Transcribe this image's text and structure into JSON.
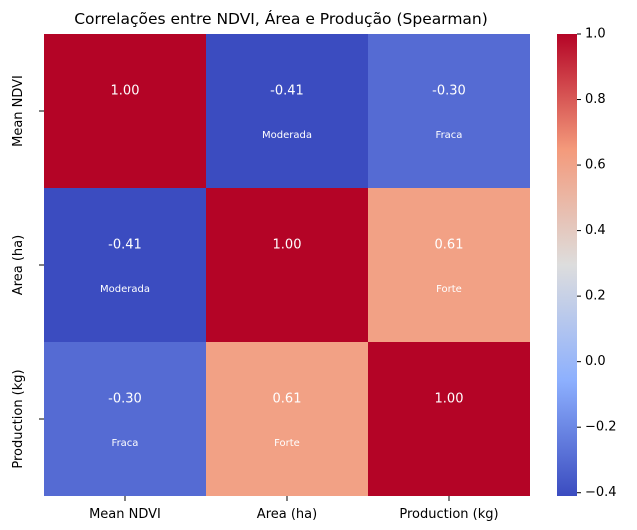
{
  "chart_data": {
    "type": "heatmap",
    "title": "Correlações entre NDVI, Área e Produção (Spearman)",
    "xlabel": "",
    "ylabel": "",
    "x_categories": [
      "Mean NDVI",
      "Area (ha)",
      "Production (kg)"
    ],
    "y_categories": [
      "Mean NDVI",
      "Area (ha)",
      "Production (kg)"
    ],
    "values": [
      [
        1.0,
        -0.41,
        -0.3
      ],
      [
        -0.41,
        1.0,
        0.61
      ],
      [
        -0.3,
        0.61,
        1.0
      ]
    ],
    "value_labels": [
      [
        "1.00",
        "-0.41",
        "-0.30"
      ],
      [
        "-0.41",
        "1.00",
        "0.61"
      ],
      [
        "-0.30",
        "0.61",
        "1.00"
      ]
    ],
    "strength_labels": [
      [
        "",
        "Moderada",
        "Fraca"
      ],
      [
        "Moderada",
        "",
        "Forte"
      ],
      [
        "Fraca",
        "Forte",
        ""
      ]
    ],
    "colormap": "coolwarm",
    "colorbar": {
      "range": [
        -0.41,
        1.0
      ],
      "ticks": [
        -0.4,
        -0.2,
        0.0,
        0.2,
        0.4,
        0.6,
        0.8,
        1.0
      ],
      "tick_labels": [
        "−0.4",
        "−0.2",
        "0.0",
        "0.2",
        "0.4",
        "0.6",
        "0.8",
        "1.0"
      ]
    },
    "grid": false,
    "legend": "colorbar-right"
  }
}
